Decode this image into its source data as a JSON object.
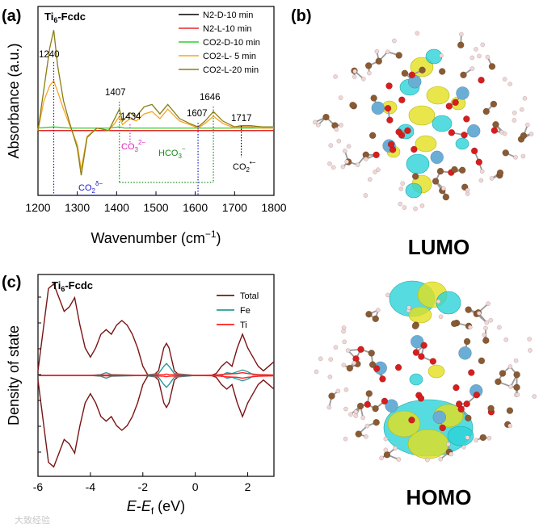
{
  "panels": {
    "a": "(a)",
    "b": "(b)",
    "c": "(c)"
  },
  "lumo_label": "LUMO",
  "homo_label": "HOMO",
  "watermark": "大致经验",
  "colors": {
    "n2_dark": "#000000",
    "n2_light": "#e8282b",
    "co2_dark": "#2ad12a",
    "co2_light5": "#f5a623",
    "co2_light20": "#8a7d12",
    "total": "#7a1414",
    "fe": "#2b9a9a",
    "ti": "#ff2020",
    "co2d_bracket": "#1a1acc",
    "co3_bracket": "#e020c0",
    "hco3_bracket": "#1a8a1a",
    "iso_cyan": "#2cd3d8",
    "iso_yellow": "#e3e01e",
    "ti_atom": "#6aaed6",
    "o_atom": "#d61e1e",
    "c_atom": "#8a5a32",
    "h_atom": "#f2d6d6"
  },
  "chart_data": [
    {
      "id": "a",
      "type": "line",
      "title": "Ti6-Fcdc",
      "xlabel": "Wavenumber (cm-1)",
      "ylabel": "Absorbance (a.u.)",
      "xlim": [
        1200,
        1800
      ],
      "xticks": [
        1200,
        1300,
        1400,
        1500,
        1600,
        1700,
        1800
      ],
      "yticks_labeled": false,
      "legend_position": "top-right",
      "series": [
        {
          "name": "N2-D-10 min",
          "color_key": "n2_dark",
          "x": [
            1200,
            1240,
            1280,
            1300,
            1340,
            1380,
            1407,
            1420,
            1434,
            1460,
            1500,
            1540,
            1580,
            1607,
            1640,
            1680,
            1717,
            1760,
            1800
          ],
          "y": [
            0.0,
            0.0,
            0.0,
            0.0,
            0.0,
            0.0,
            0.0,
            0.0,
            0.0,
            0.0,
            0.0,
            0.0,
            0.0,
            0.0,
            0.0,
            0.0,
            0.0,
            0.0,
            0.0
          ]
        },
        {
          "name": "N2-L-10 min",
          "color_key": "n2_light",
          "x": [
            1200,
            1240,
            1280,
            1300,
            1340,
            1380,
            1407,
            1420,
            1434,
            1460,
            1500,
            1540,
            1580,
            1607,
            1640,
            1680,
            1717,
            1760,
            1800
          ],
          "y": [
            0.0,
            0.0,
            0.0,
            0.0,
            0.0,
            0.0,
            0.0,
            0.0,
            0.0,
            0.0,
            0.0,
            0.0,
            0.0,
            0.0,
            0.0,
            0.0,
            0.0,
            0.0,
            0.0
          ]
        },
        {
          "name": "CO2-D-10 min",
          "color_key": "co2_dark",
          "x": [
            1200,
            1240,
            1280,
            1300,
            1340,
            1380,
            1407,
            1420,
            1434,
            1460,
            1500,
            1540,
            1580,
            1607,
            1640,
            1680,
            1717,
            1760,
            1800
          ],
          "y": [
            0.02,
            0.03,
            0.02,
            0.02,
            0.02,
            0.02,
            0.03,
            0.02,
            0.02,
            0.02,
            0.02,
            0.02,
            0.02,
            0.02,
            0.02,
            0.02,
            0.02,
            0.02,
            0.02
          ]
        },
        {
          "name": "CO2-L- 5 min",
          "color_key": "co2_light5",
          "x": [
            1200,
            1215,
            1230,
            1240,
            1250,
            1265,
            1280,
            1300,
            1310,
            1325,
            1350,
            1380,
            1395,
            1407,
            1415,
            1434,
            1450,
            1470,
            1490,
            1510,
            1530,
            1560,
            1585,
            1607,
            1625,
            1646,
            1670,
            1700,
            1717,
            1740,
            1770,
            1800
          ],
          "y": [
            0.0,
            0.25,
            0.38,
            0.42,
            0.33,
            0.18,
            0.05,
            -0.12,
            -0.33,
            -0.05,
            0.02,
            0.0,
            0.06,
            0.12,
            0.05,
            0.1,
            0.08,
            0.14,
            0.16,
            0.1,
            0.18,
            0.08,
            0.05,
            0.02,
            0.06,
            0.12,
            0.06,
            0.02,
            0.03,
            0.03,
            0.02,
            0.02
          ]
        },
        {
          "name": "CO2-L-20 min",
          "color_key": "co2_light20",
          "x": [
            1200,
            1215,
            1230,
            1240,
            1250,
            1265,
            1280,
            1300,
            1310,
            1325,
            1350,
            1380,
            1395,
            1407,
            1415,
            1434,
            1450,
            1470,
            1490,
            1510,
            1530,
            1560,
            1585,
            1607,
            1625,
            1646,
            1670,
            1700,
            1717,
            1740,
            1770,
            1800
          ],
          "y": [
            0.0,
            0.35,
            0.7,
            0.85,
            0.55,
            0.25,
            0.07,
            -0.15,
            -0.38,
            -0.06,
            0.02,
            0.0,
            0.1,
            0.18,
            0.08,
            0.15,
            0.12,
            0.2,
            0.22,
            0.14,
            0.22,
            0.1,
            0.06,
            0.03,
            0.08,
            0.16,
            0.08,
            0.03,
            0.04,
            0.04,
            0.03,
            0.03
          ]
        }
      ],
      "ylim": [
        -0.55,
        1.05
      ],
      "annotations": [
        {
          "text": "1240",
          "x": 1240
        },
        {
          "text": "1407",
          "x": 1407
        },
        {
          "text": "1434",
          "x": 1434
        },
        {
          "text": "1607",
          "x": 1607
        },
        {
          "text": "1646",
          "x": 1646
        },
        {
          "text": "1717",
          "x": 1717
        },
        {
          "text": "CO3 2−",
          "label_key": "co3"
        },
        {
          "text": "HCO3 −",
          "label_key": "hco3"
        },
        {
          "text": "CO2 •−",
          "label_key": "co2rad"
        },
        {
          "text": "CO2 δ−",
          "label_key": "co2d"
        }
      ]
    },
    {
      "id": "c",
      "type": "line",
      "title": "Ti6-Fcdc",
      "xlabel": "E-Ef (eV)",
      "ylabel": "Density of state",
      "xlim": [
        -6,
        3
      ],
      "xticks": [
        -6,
        -4,
        -2,
        0,
        2
      ],
      "yticks_labeled": false,
      "legend_position": "top-right",
      "series": [
        {
          "name": "Total",
          "color_key": "total",
          "x": [
            -6.0,
            -5.8,
            -5.6,
            -5.4,
            -5.2,
            -5.0,
            -4.8,
            -4.6,
            -4.4,
            -4.2,
            -4.0,
            -3.8,
            -3.6,
            -3.4,
            -3.2,
            -3.0,
            -2.8,
            -2.6,
            -2.4,
            -2.2,
            -2.0,
            -1.8,
            -1.6,
            -1.4,
            -1.2,
            -1.1,
            -1.0,
            -0.8,
            -0.6,
            -0.4,
            -0.2,
            0.0,
            0.2,
            0.4,
            0.6,
            0.8,
            1.0,
            1.2,
            1.4,
            1.6,
            1.8,
            2.0,
            2.2,
            2.4,
            2.6,
            2.8,
            3.0
          ],
          "y": [
            0.05,
            0.5,
            0.95,
            1.0,
            0.85,
            0.7,
            0.75,
            0.85,
            0.55,
            0.3,
            0.2,
            0.3,
            0.45,
            0.5,
            0.45,
            0.55,
            0.6,
            0.55,
            0.45,
            0.3,
            0.1,
            0.0,
            0.0,
            0.05,
            0.3,
            0.35,
            0.3,
            0.05,
            0.0,
            0.0,
            0.0,
            0.0,
            0.0,
            0.0,
            0.0,
            0.02,
            0.1,
            0.15,
            0.1,
            0.3,
            0.45,
            0.3,
            0.2,
            0.1,
            0.05,
            0.1,
            0.15
          ]
        },
        {
          "name": "Fe",
          "color_key": "fe",
          "x": [
            -6.0,
            -4.0,
            -3.6,
            -3.4,
            -3.2,
            -2.0,
            -1.4,
            -1.2,
            -1.1,
            -1.0,
            -0.8,
            0.0,
            1.0,
            1.2,
            1.4,
            1.6,
            1.8,
            2.0,
            2.2,
            3.0
          ],
          "y": [
            0.0,
            0.0,
            0.01,
            0.03,
            0.01,
            0.0,
            0.02,
            0.1,
            0.13,
            0.1,
            0.02,
            0.0,
            0.0,
            0.03,
            0.02,
            0.04,
            0.06,
            0.04,
            0.01,
            0.0
          ]
        },
        {
          "name": "Ti",
          "color_key": "ti",
          "x": [
            -6.0,
            -4.0,
            -3.4,
            -2.0,
            -1.2,
            -1.1,
            -1.0,
            0.0,
            0.8,
            1.2,
            1.6,
            1.8,
            2.0,
            2.4,
            3.0
          ],
          "y": [
            0.0,
            0.0,
            0.005,
            0.0,
            0.01,
            0.015,
            0.01,
            0.0,
            0.005,
            0.015,
            0.02,
            0.03,
            0.02,
            0.01,
            0.005
          ]
        }
      ],
      "ylim": [
        -1.05,
        1.05
      ],
      "mirrored_spin_down": true
    }
  ]
}
